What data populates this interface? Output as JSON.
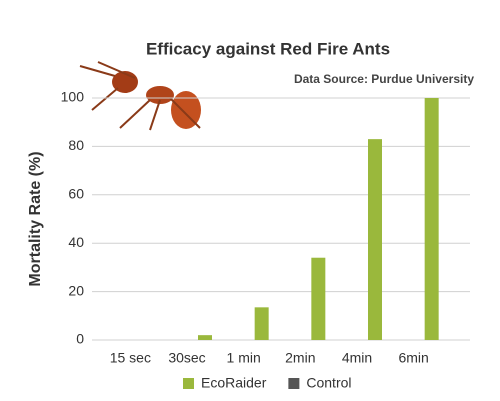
{
  "chart_data": {
    "type": "bar",
    "title": "Efficacy against Red Fire Ants",
    "subtitle": "Data Source: Purdue University",
    "y_label": "Mortality Rate (%)",
    "categories": [
      "15 sec",
      "30sec",
      "1 min",
      "2min",
      "4min",
      "6min"
    ],
    "series": [
      {
        "name": "EcoRaider",
        "color": "#9ab83c",
        "values": [
          0,
          2,
          13.5,
          34,
          83,
          100
        ]
      },
      {
        "name": "Control",
        "color": "#555555",
        "values": [
          0,
          0,
          0,
          0,
          0,
          0
        ]
      }
    ],
    "ylim": [
      0,
      100
    ],
    "yticks": [
      0,
      20,
      40,
      60,
      80,
      100
    ],
    "grid": true
  }
}
